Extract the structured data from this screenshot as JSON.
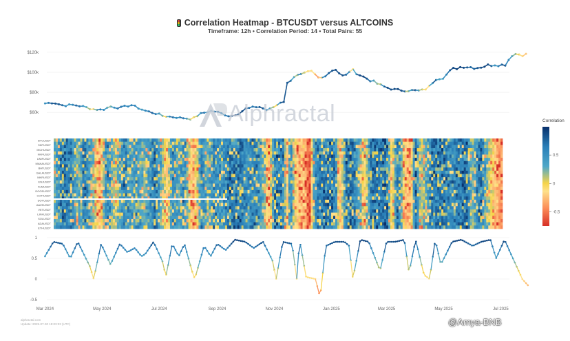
{
  "header": {
    "title": "Correlation Heatmap - BTCUSDT versus ALTCOINS",
    "subtitle": "Timeframe: 12h • Correlation Period: 14 • Total Pairs: 55"
  },
  "watermark": "Alphractal",
  "footer": {
    "credit_site": "alphractal.com",
    "credit_update": "Update: 2025-07-30 19:03:33 (UTC)",
    "badge": "@Amya-BNB"
  },
  "colorbar": {
    "title": "Correlation",
    "ticks": [
      "0.5",
      "0",
      "-0.5"
    ],
    "tick_values": [
      0.5,
      0,
      -0.5
    ],
    "range": [
      -0.75,
      1
    ],
    "stops": [
      "#d73027",
      "#fc8d59",
      "#fee08b",
      "#f6d44a",
      "#4fa8c8",
      "#2a7fb8",
      "#08306b"
    ]
  },
  "chart_data": [
    {
      "type": "line",
      "series": [
        {
          "values": [
            69000,
            70000,
            67000,
            67500,
            66000,
            63500,
            62500,
            66000,
            64500,
            67500,
            62000,
            58000,
            56500,
            53500,
            59000,
            61500,
            60500,
            58500,
            56000,
            59500,
            63500,
            66000,
            62000,
            68000,
            72500,
            70000,
            87000,
            96000,
            97500,
            101000,
            93000,
            97000,
            104000,
            98500,
            95000,
            103000,
            97000,
            86000,
            84000,
            82500,
            81500,
            85000,
            93500,
            95000,
            103000,
            106000,
            104500,
            106500,
            108000,
            107000,
            118500,
            117500
          ]
        }
      ],
      "x": [
        "2024-03-01",
        "2024-03-10",
        "2024-03-20",
        "2024-04-01",
        "2024-04-10",
        "2024-04-20",
        "2024-05-01",
        "2024-05-10",
        "2024-05-20",
        "2024-06-01",
        "2024-06-15",
        "2024-07-01",
        "2024-07-05",
        "2024-08-05",
        "2024-08-15",
        "2024-08-25",
        "2024-09-01",
        "2024-09-07",
        "2024-09-15",
        "2024-09-25",
        "2024-10-01",
        "2024-10-15",
        "2024-10-25",
        "2024-11-05",
        "2024-11-10",
        "2024-11-12",
        "2024-11-13",
        "2024-11-22",
        "2024-12-01",
        "2024-12-10",
        "2024-12-20",
        "2024-12-25",
        "2025-01-05",
        "2025-01-10",
        "2025-01-15",
        "2025-01-22",
        "2025-02-01",
        "2025-02-25",
        "2025-03-05",
        "2025-03-10",
        "2025-04-07",
        "2025-04-15",
        "2025-04-22",
        "2025-05-01",
        "2025-05-10",
        "2025-05-22",
        "2025-06-05",
        "2025-06-15",
        "2025-06-25",
        "2025-07-05",
        "2025-07-14",
        "2025-07-28"
      ],
      "ytick_labels": [
        "$60k",
        "$80k",
        "$100k",
        "$120k"
      ],
      "ytick_values": [
        60000,
        80000,
        100000,
        120000
      ],
      "ylim": [
        43000,
        124000
      ]
    },
    {
      "type": "heatmap",
      "rows": [
        "BTCUSDT",
        "SKPUSDT",
        "INCHUSDT",
        "NKRUSDT",
        "UNIFUSDT",
        "MANAUSDT",
        "BATUSDT",
        "GALAUSDT",
        "MKRUSDT",
        "ENJUSDT",
        "XLMUSDT",
        "DOGEUSDT",
        "COTIUSDT",
        "DOTUSDT",
        "AAVEUSDT",
        "VETUSDT",
        "LINKUSDT",
        "SOLUSDT",
        "ADAUSDT",
        "ETHUSDT"
      ],
      "x_start": "2024-03-01",
      "x_end": "2025-07-30",
      "value_range": [
        -0.75,
        1
      ],
      "row_count_total": 55
    },
    {
      "type": "line",
      "series": [
        {
          "values": [
            0.55,
            0.9,
            0.85,
            0.5,
            0.9,
            0.3,
            0.0,
            0.85,
            0.35,
            0.85,
            0.65,
            0.75,
            0.55,
            0.6,
            0.9,
            0.4,
            0.05,
            0.85,
            0.55,
            0.85,
            0.2,
            0.0,
            0.8,
            0.55,
            0.85,
            0.7,
            0.95,
            0.9,
            0.75,
            0.9,
            0.45,
            0.0,
            0.9,
            0.85,
            0.0,
            0.95,
            0.05,
            0.0,
            -0.45,
            0.8,
            0.9,
            0.9,
            0.8,
            0.0,
            0.95,
            0.9,
            0.2,
            0.9,
            0.9,
            0.95,
            0.15,
            0.95,
            0.1,
            0.0,
            0.95,
            0.35,
            0.9,
            0.95,
            0.8,
            0.9,
            0.95,
            0.5,
            0.95,
            0.0,
            -0.15
          ]
        }
      ],
      "x": [
        "2024-03-01",
        "2024-03-10",
        "2024-03-20",
        "2024-03-28",
        "2024-04-05",
        "2024-04-18",
        "2024-04-22",
        "2024-04-30",
        "2024-05-10",
        "2024-05-20",
        "2024-05-28",
        "2024-06-05",
        "2024-06-12",
        "2024-06-16",
        "2024-06-25",
        "2024-07-05",
        "2024-07-08",
        "2024-07-15",
        "2024-07-22",
        "2024-07-28",
        "2024-08-05",
        "2024-08-08",
        "2024-08-18",
        "2024-08-25",
        "2024-09-01",
        "2024-09-10",
        "2024-09-20",
        "2024-10-01",
        "2024-10-10",
        "2024-10-20",
        "2024-10-30",
        "2024-11-03",
        "2024-11-10",
        "2024-11-20",
        "2024-11-25",
        "2024-11-28",
        "2024-12-05",
        "2024-12-15",
        "2024-12-20",
        "2024-12-26",
        "2025-01-05",
        "2025-01-15",
        "2025-01-20",
        "2025-01-24",
        "2025-02-01",
        "2025-02-10",
        "2025-02-22",
        "2025-03-01",
        "2025-03-10",
        "2025-03-20",
        "2025-03-25",
        "2025-04-01",
        "2025-04-10",
        "2025-04-16",
        "2025-04-22",
        "2025-04-28",
        "2025-05-10",
        "2025-05-20",
        "2025-06-01",
        "2025-06-10",
        "2025-06-20",
        "2025-06-26",
        "2025-07-05",
        "2025-07-24",
        "2025-07-30"
      ],
      "ytick_labels": [
        "1",
        "0.5",
        "0",
        "-0.5"
      ],
      "ytick_values": [
        1,
        0.5,
        0,
        -0.5
      ],
      "ylim": [
        -0.55,
        1.05
      ],
      "xtick_labels": [
        "Mar 2024",
        "May 2024",
        "Jul 2024",
        "Sep 2024",
        "Nov 2024",
        "Jan 2025",
        "Mar 2025",
        "May 2025",
        "Jul 2025"
      ],
      "xtick_dates": [
        "2024-03-01",
        "2024-05-01",
        "2024-07-01",
        "2024-09-01",
        "2024-11-01",
        "2025-01-01",
        "2025-03-01",
        "2025-05-01",
        "2025-07-01"
      ]
    }
  ]
}
